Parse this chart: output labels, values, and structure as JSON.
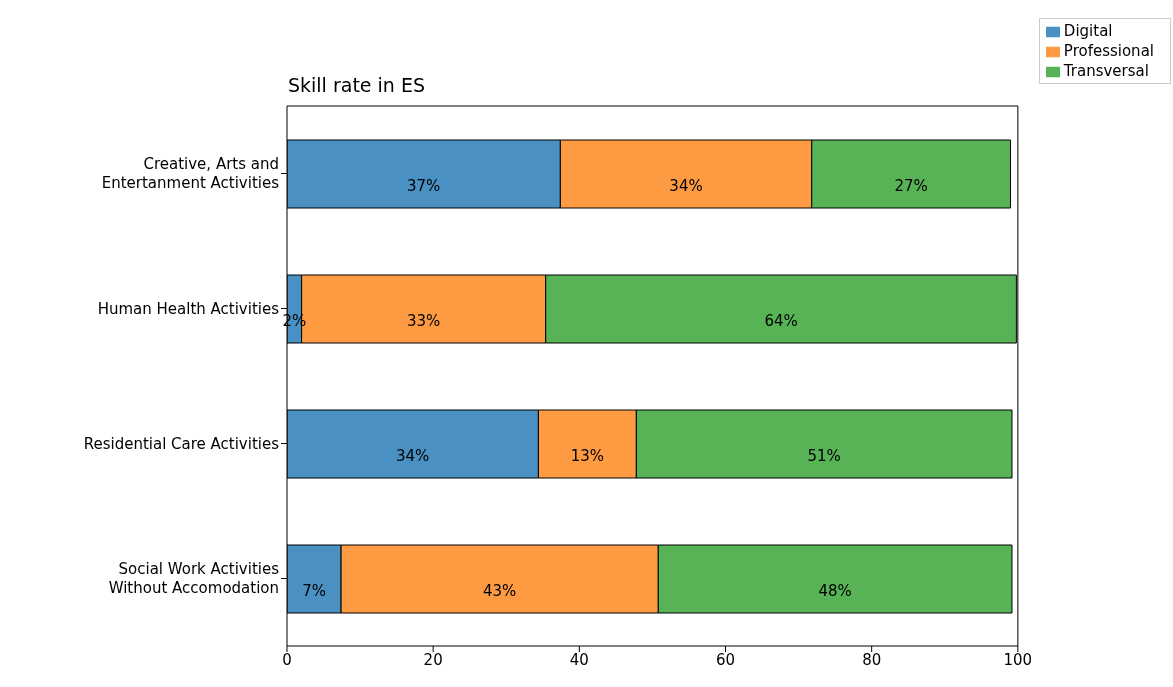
{
  "chart_data": {
    "type": "bar",
    "orientation": "horizontal",
    "stacked": true,
    "title": "Skill rate in ES",
    "categories": [
      "Creative, Arts and Entertanment Activities",
      "Human Health Activities",
      "Residential Care Activities",
      "Social Work Activities Without Accomodation"
    ],
    "series": [
      {
        "name": "Digital",
        "color": "#4a90c2",
        "values": [
          37.4,
          2.0,
          34.4,
          7.4
        ],
        "value_labels": [
          "37%",
          "2%",
          "34%",
          "7%"
        ]
      },
      {
        "name": "Professional",
        "color": "#fe9a42",
        "values": [
          34.4,
          33.4,
          13.4,
          43.4
        ],
        "value_labels": [
          "34%",
          "33%",
          "13%",
          "43%"
        ]
      },
      {
        "name": "Transversal",
        "color": "#57b356",
        "values": [
          27.2,
          64.4,
          51.4,
          48.4
        ],
        "value_labels": [
          "27%",
          "64%",
          "51%",
          "48%"
        ]
      }
    ],
    "xlim": [
      0,
      100
    ],
    "xticks": [
      0,
      20,
      40,
      60,
      80,
      100
    ],
    "legend": "top right"
  }
}
